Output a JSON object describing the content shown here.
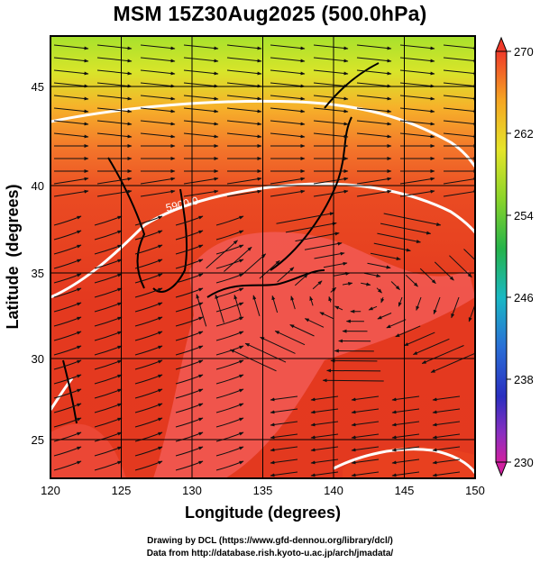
{
  "title": "MSM 15Z30Aug2025 (500.0hPa)",
  "x_axis": {
    "label": "Longitude (degrees)",
    "ticks": [
      "120",
      "125",
      "130",
      "135",
      "140",
      "145",
      "150"
    ]
  },
  "y_axis": {
    "label": "Latitude  (degrees)",
    "ticks": [
      "25",
      "30",
      "35",
      "40",
      "45"
    ]
  },
  "colorbar": {
    "ticks": [
      "270",
      "262",
      "254",
      "246",
      "238",
      "230"
    ]
  },
  "contour_label": "5900.0",
  "credits": {
    "line1": "Drawing by DCL (https://www.gfd-dennou.org/library/dcl/)",
    "line2": "Data from http://database.rish.kyoto-u.ac.jp/arch/jmadata/"
  },
  "colors": {
    "warm": "#e53821",
    "hot": "#f15a52",
    "cool": "#9be22f",
    "contour": "#ffffff",
    "streamline": "#111111"
  }
}
